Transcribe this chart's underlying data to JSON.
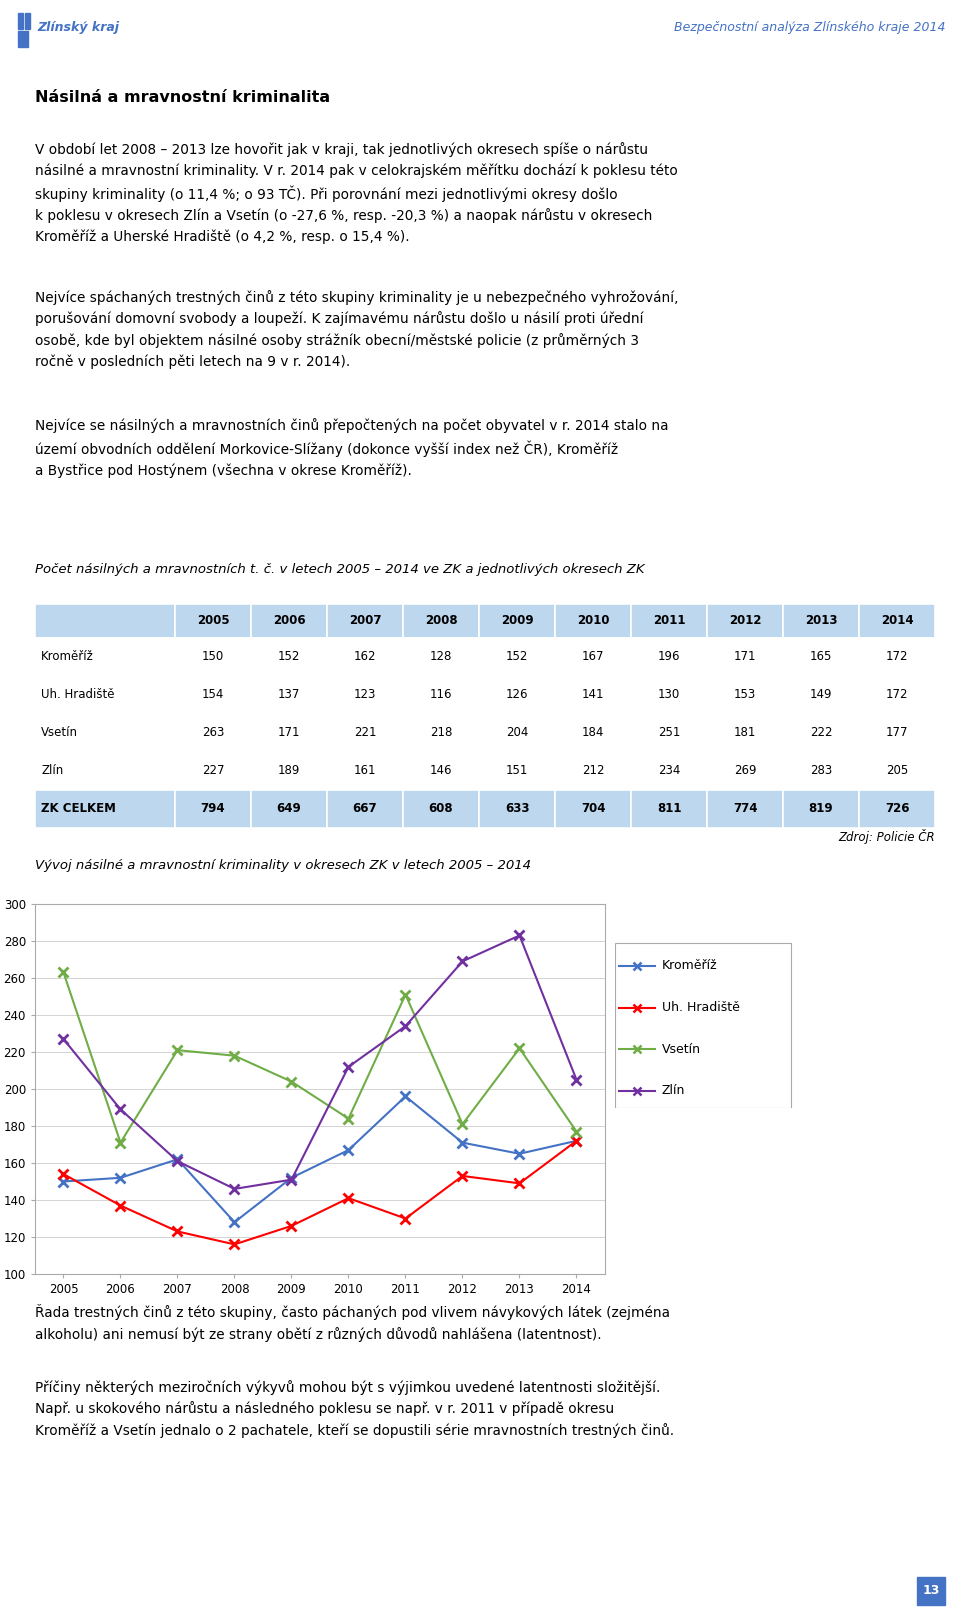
{
  "header_left": "Zlínský kraj",
  "header_right": "Bezpečnostní analýza Zlínského kraje 2014",
  "page_number": "13",
  "title_main": "Násilná a mravnostní kriminalita",
  "para1": "V období let 2008 – 2013 lze hovořit jak v kraji, tak jednotlivých okresech spíše o nárůstu\nnásilné a mravnostní kriminality. V r. 2014 pak v celokrajském měřítku dochází k poklesu této\nskupiny kriminality (o 11,4 %; o 93 TČ). Při porovnání mezi jednotlivými okresy došlo\nk poklesu v okresech Zlín a Vsetín (o -27,6 %, resp. -20,3 %) a naopak nárůstu v okresech\nKroměříž a Uherské Hradiště (o 4,2 %, resp. o 15,4 %).",
  "para2": "Nejvíce spáchaných trestných činů z této skupiny kriminality je u nebezpečného vyhrožování,\nporušování domovní svobody a loupeží. K zajímavému nárůstu došlo u násilí proti úřední\nosobě, kde byl objektem násilné osoby strážník obecní/městské policie (z průměrných 3\nročně v posledních pěti letech na 9 v r. 2014).",
  "para3": "Nejvíce se násilných a mravnostních činů přepočtených na počet obyvatel v r. 2014 stalo na\núzemí obvodních oddělení Morkovice-Slížany (dokonce vyšší index než ČR), Kroměříž\na Bystřice pod Hostýnem (všechna v okrese Kroměříž).",
  "table_caption": "Počet násilných a mravnostních t. č. v letech 2005 – 2014 ve ZK a jednotlivých okresech ZK",
  "table_source": "Zdroj: Policie ČR",
  "table_years": [
    2005,
    2006,
    2007,
    2008,
    2009,
    2010,
    2011,
    2012,
    2013,
    2014
  ],
  "table_rows": [
    {
      "label": "Kroměříž",
      "values": [
        150,
        152,
        162,
        128,
        152,
        167,
        196,
        171,
        165,
        172
      ],
      "bold": false
    },
    {
      "label": "Uh. Hradiště",
      "values": [
        154,
        137,
        123,
        116,
        126,
        141,
        130,
        153,
        149,
        172
      ],
      "bold": false
    },
    {
      "label": "Vsetín",
      "values": [
        263,
        171,
        221,
        218,
        204,
        184,
        251,
        181,
        222,
        177
      ],
      "bold": false
    },
    {
      "label": "Zlín",
      "values": [
        227,
        189,
        161,
        146,
        151,
        212,
        234,
        269,
        283,
        205
      ],
      "bold": false
    },
    {
      "label": "ZK CELKEM",
      "values": [
        794,
        649,
        667,
        608,
        633,
        704,
        811,
        774,
        819,
        726
      ],
      "bold": true
    }
  ],
  "chart_caption": "Vývoj násilné a mravnostní kriminality v okresech ZK v letech 2005 – 2014",
  "chart_years": [
    2005,
    2006,
    2007,
    2008,
    2009,
    2010,
    2011,
    2012,
    2013,
    2014
  ],
  "chart_series": [
    {
      "label": "Kroměříž",
      "color": "#4472C4",
      "values": [
        150,
        152,
        162,
        128,
        152,
        167,
        196,
        171,
        165,
        172
      ]
    },
    {
      "label": "Uh. Hradiště",
      "color": "#FF0000",
      "values": [
        154,
        137,
        123,
        116,
        126,
        141,
        130,
        153,
        149,
        172
      ]
    },
    {
      "label": "Vsetín",
      "color": "#70AD47",
      "values": [
        263,
        171,
        221,
        218,
        204,
        184,
        251,
        181,
        222,
        177
      ]
    },
    {
      "label": "Zlín",
      "color": "#7030A0",
      "values": [
        227,
        189,
        161,
        146,
        151,
        212,
        234,
        269,
        283,
        205
      ]
    }
  ],
  "chart_ylim": [
    100,
    300
  ],
  "chart_yticks": [
    100,
    120,
    140,
    160,
    180,
    200,
    220,
    240,
    260,
    280,
    300
  ],
  "footer1": "Řada trestných činů z této skupiny, často páchaných pod vlivem návykových látek (zejména\nalkoholu) ani nemusí být ze strany obětí z různých důvodů nahlášena (latentnost).",
  "footer2": "Příčiny některých meziročních výkyvů mohou být s výjimkou uvedené latentnosti složitější.\nNapř. u skokového nárůstu a následného poklesu se např. v r. 2011 v případě okresu\nKroměříž a Vsetín jednalo o 2 pachatele, kteří se dopustili série mravnostních trestných činů.",
  "table_header_bg": "#BDD7EE",
  "table_total_bg": "#BDD7EE",
  "header_blue": "#4472C4",
  "page_footer_bg": "#4472C4"
}
